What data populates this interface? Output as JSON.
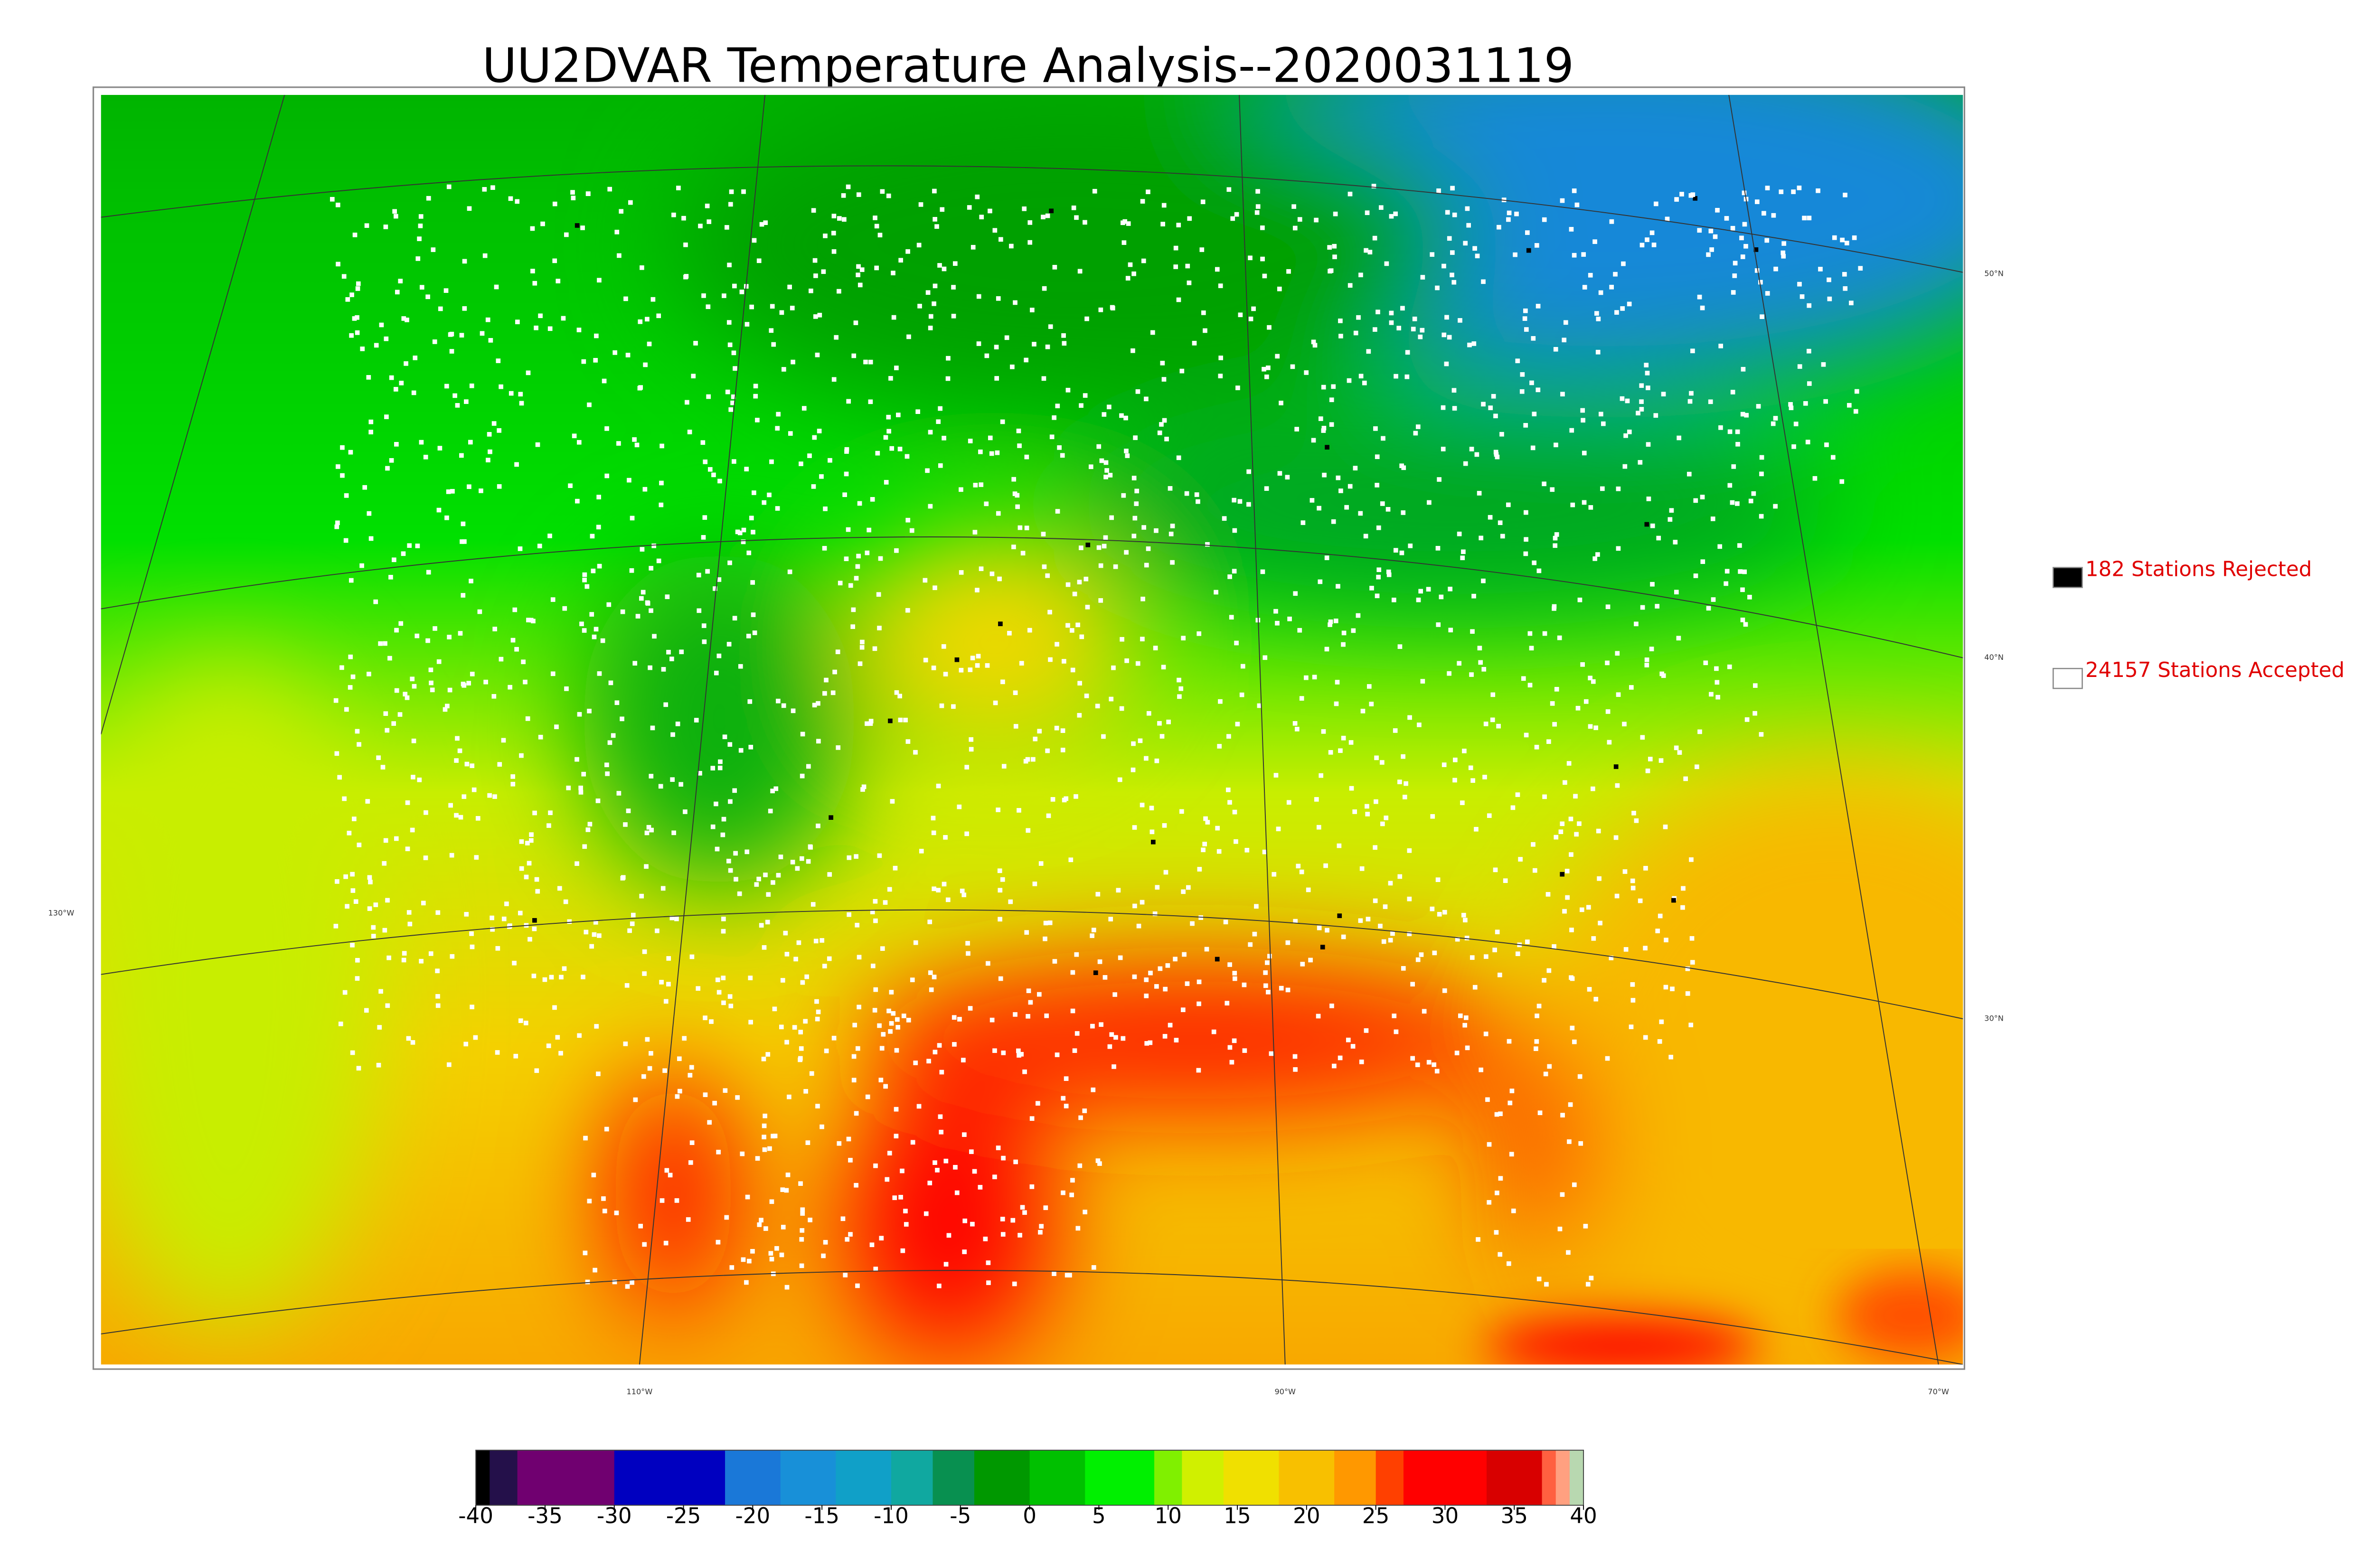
{
  "title": "UU2DVAR Temperature Analysis--2020031119",
  "legend": [
    {
      "label": "182 Stations Rejected",
      "color": "#000000"
    },
    {
      "label": "24157 Stations Accepted",
      "color": "#ffffff"
    }
  ],
  "colorbar": {
    "range": [
      -40,
      40
    ],
    "ticks": [
      -40,
      -35,
      -30,
      -25,
      -20,
      -15,
      -10,
      -5,
      0,
      5,
      10,
      15,
      20,
      25,
      30,
      35,
      40
    ],
    "segments": [
      {
        "from": -40,
        "to": -39,
        "color": "#000000"
      },
      {
        "from": -39,
        "to": -37,
        "color": "#24104a"
      },
      {
        "from": -37,
        "to": -30,
        "color": "#700070"
      },
      {
        "from": -30,
        "to": -22,
        "color": "#0000c0"
      },
      {
        "from": -22,
        "to": -18,
        "color": "#1a78d8"
      },
      {
        "from": -18,
        "to": -14,
        "color": "#1890d8"
      },
      {
        "from": -14,
        "to": -10,
        "color": "#10a0c8"
      },
      {
        "from": -10,
        "to": -7,
        "color": "#10a8a0"
      },
      {
        "from": -7,
        "to": -4,
        "color": "#089050"
      },
      {
        "from": -4,
        "to": 0,
        "color": "#009800"
      },
      {
        "from": 0,
        "to": 4,
        "color": "#00c000"
      },
      {
        "from": 4,
        "to": 9,
        "color": "#00f000"
      },
      {
        "from": 9,
        "to": 11,
        "color": "#80f000"
      },
      {
        "from": 11,
        "to": 14,
        "color": "#d0f000"
      },
      {
        "from": 14,
        "to": 18,
        "color": "#f0e000"
      },
      {
        "from": 18,
        "to": 22,
        "color": "#f8c000"
      },
      {
        "from": 22,
        "to": 25,
        "color": "#ff9800"
      },
      {
        "from": 25,
        "to": 27,
        "color": "#ff4000"
      },
      {
        "from": 27,
        "to": 33,
        "color": "#ff0000"
      },
      {
        "from": 33,
        "to": 37,
        "color": "#d80000"
      },
      {
        "from": 37,
        "to": 38,
        "color": "#ff6040"
      },
      {
        "from": 38,
        "to": 39,
        "color": "#ffa080"
      },
      {
        "from": 39,
        "to": 40,
        "color": "#b8d8b0"
      }
    ]
  },
  "map_labels": {
    "latitudes": [
      "50°N",
      "40°N",
      "30°N"
    ],
    "longitudes": [
      "130°W",
      "110°W",
      "90°W",
      "70°W"
    ]
  }
}
